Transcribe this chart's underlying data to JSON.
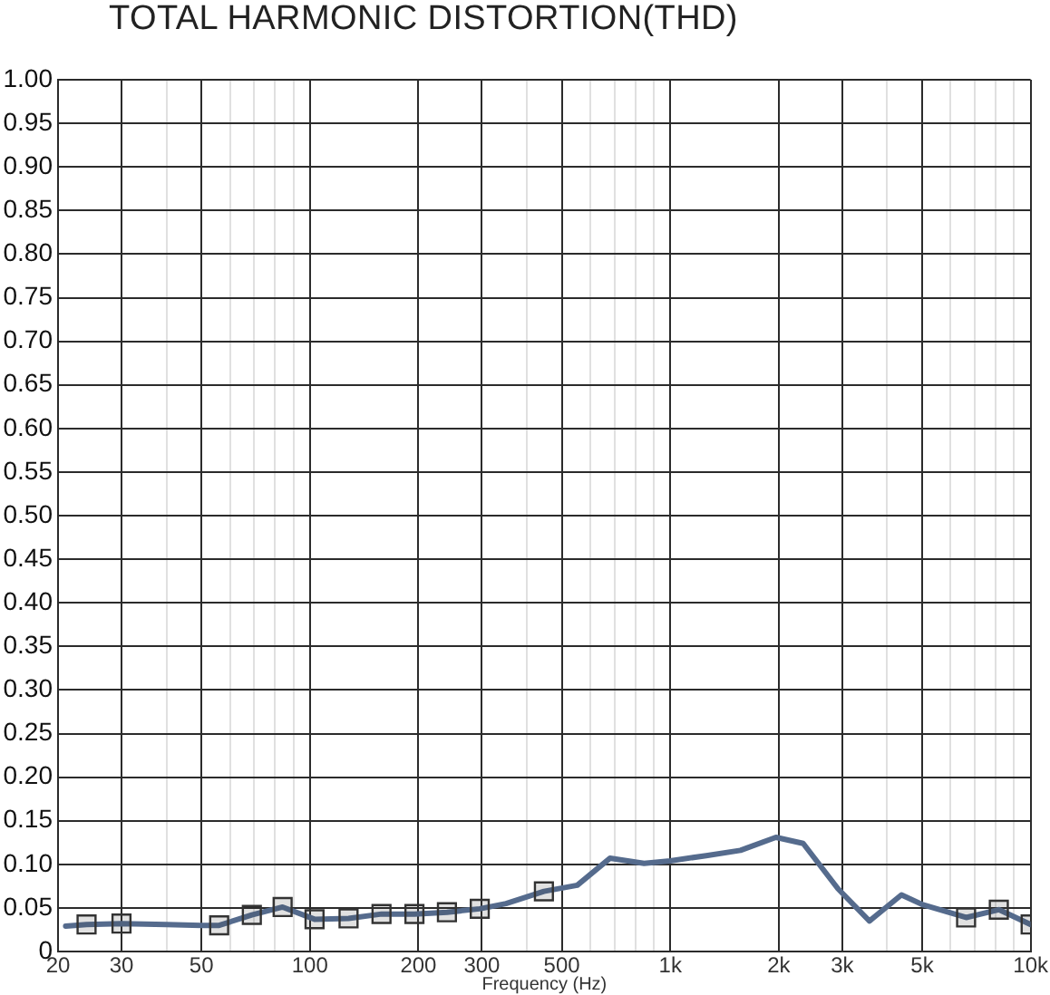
{
  "chart_data": {
    "type": "line",
    "title": "TOTAL HARMONIC DISTORTION(THD)",
    "xlabel": "Frequency (Hz)",
    "x": [
      21,
      24,
      30,
      40,
      50,
      56,
      69,
      84,
      103,
      128,
      158,
      195,
      240,
      296,
      350,
      446,
      552,
      680,
      846,
      1000,
      1258,
      1566,
      1964,
      2338,
      2920,
      3570,
      4380,
      5000,
      6620,
      8160,
      10000
    ],
    "series": [
      {
        "type": "line",
        "color": "#556b8d",
        "marker": "none",
        "values": [
          0.029,
          0.031,
          0.032,
          0.031,
          0.03,
          0.03,
          0.042,
          0.051,
          0.037,
          0.038,
          0.043,
          0.043,
          0.045,
          0.049,
          0.055,
          0.069,
          0.076,
          0.107,
          0.101,
          0.104,
          0.11,
          0.116,
          0.131,
          0.124,
          0.072,
          0.035,
          0.065,
          0.054,
          0.039,
          0.048,
          0.031
        ]
      },
      {
        "type": "scatter",
        "color": "#333333",
        "marker": "square",
        "x": [
          24,
          30,
          56,
          69,
          84,
          103,
          128,
          158,
          195,
          240,
          296,
          446,
          6620,
          8160,
          10000
        ],
        "values": [
          0.031,
          0.032,
          0.03,
          0.042,
          0.051,
          0.037,
          0.038,
          0.043,
          0.043,
          0.045,
          0.049,
          0.069,
          0.039,
          0.048,
          0.031
        ]
      }
    ],
    "log": "x",
    "xlim": [
      20,
      10000
    ],
    "xticks": [
      20,
      30,
      {
        "value": 40,
        "label": null
      },
      50,
      {
        "value": 60,
        "label": null
      },
      {
        "value": 70,
        "label": null
      },
      {
        "value": 80,
        "label": null
      },
      {
        "value": 90,
        "label": null
      },
      100,
      200,
      300,
      {
        "value": 400,
        "label": null
      },
      500,
      {
        "value": 600,
        "label": null
      },
      {
        "value": 700,
        "label": null
      },
      {
        "value": 800,
        "label": null
      },
      {
        "value": 900,
        "label": null
      },
      {
        "value": 1000,
        "label": "1k"
      },
      {
        "value": 2000,
        "label": "2k"
      },
      {
        "value": 3000,
        "label": "3k"
      },
      {
        "value": 4000,
        "label": null
      },
      {
        "value": 5000,
        "label": "5k"
      },
      {
        "value": 6000,
        "label": null
      },
      {
        "value": 7000,
        "label": null
      },
      {
        "value": 8000,
        "label": null
      },
      {
        "value": 9000,
        "label": null
      },
      {
        "value": 10000,
        "label": "10k"
      }
    ],
    "ylim": [
      0,
      1
    ],
    "yticks": [
      0,
      0.05,
      {
        "value": 0.1,
        "label": "0.10"
      },
      0.15,
      {
        "value": 0.2,
        "label": "0.20"
      },
      0.25,
      {
        "value": 0.3,
        "label": "0.30"
      },
      0.35,
      {
        "value": 0.4,
        "label": "0.40"
      },
      0.45,
      {
        "value": 0.5,
        "label": "0.50"
      },
      0.55,
      {
        "value": 0.6,
        "label": "0.60"
      },
      0.65,
      {
        "value": 0.7,
        "label": "0.70"
      },
      0.75,
      {
        "value": 0.8,
        "label": "0.80"
      },
      0.85,
      {
        "value": 0.9,
        "label": "0.90"
      },
      0.95,
      {
        "value": 1,
        "label": "1.00"
      }
    ],
    "grid": true
  }
}
